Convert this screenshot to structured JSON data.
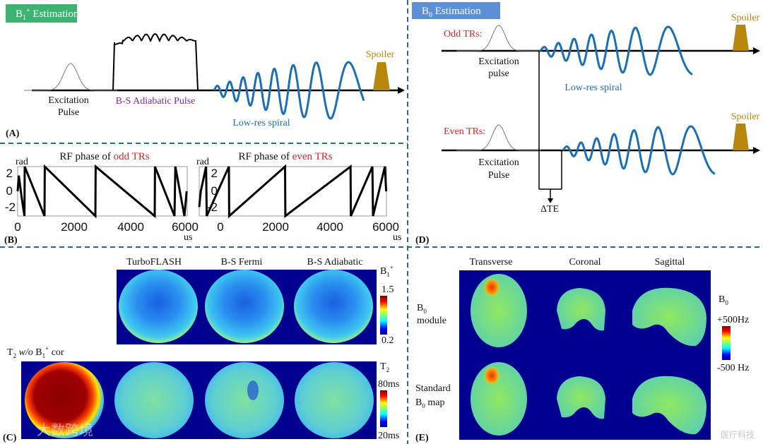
{
  "colors": {
    "accent_green": "#3cb371",
    "accent_blue": "#5b8fd6",
    "divider": "#2a6a8a",
    "spiral": "#1a6fb5",
    "spoiler": "#b8860b",
    "highlight_red": "#e0202a",
    "purple": "#7a2a9a"
  },
  "panel_a": {
    "box_label_b": "B",
    "box_label_sub": "1",
    "box_label_sup": "+",
    "box_label_rest": " Estimation",
    "excitation_1": "Excitation",
    "excitation_2": "Pulse",
    "bs_pulse": "B-S Adiabatic  Pulse",
    "spiral": "Low-res spiral",
    "spoiler": "Spoiler",
    "tag": "(A)"
  },
  "panel_b": {
    "left_title_prefix": "RF phase  of ",
    "left_title_highlight": "odd TRs",
    "right_title_prefix": "RF phase  of ",
    "right_title_highlight": "even TRs",
    "y_unit": "rad",
    "x_unit": "us",
    "y_ticks": [
      "2",
      "0",
      "-2"
    ],
    "x_ticks": [
      "0",
      "2000",
      "4000",
      "6000"
    ],
    "tag": "(B)"
  },
  "panel_d": {
    "box_label_b": "B",
    "box_label_sub": "0",
    "box_label_rest": " Estimation",
    "odd": "Odd TRs:",
    "even": "Even TRs:",
    "excitation_1": "Excitation",
    "excitation_2a": "pulse",
    "excitation_2b": "Pulse",
    "spiral": "Low-res spiral",
    "spoiler": "Spoiler",
    "delta_te": "ΔTE",
    "tag": "(D)"
  },
  "panel_c": {
    "columns": [
      "TurboFLASH",
      "B-S Fermi",
      "B-S Adiabatic"
    ],
    "b1_label_b": "B",
    "b1_label_sub": "1",
    "b1_label_sup": "+",
    "b1_max": "1.5",
    "b1_min": "0.2",
    "t2_row_label_t": "T",
    "t2_row_label_sub": "2",
    "t2_row_label_wo": " w/o",
    "t2_row_label_b": " B",
    "t2_row_label_sub2": "1",
    "t2_row_label_sup": "+",
    "t2_row_label_cor": " cor",
    "t2_label_t": "T",
    "t2_label_sub": "2",
    "t2_max": "80ms",
    "t2_min": "20ms",
    "tag": "(C)"
  },
  "panel_e": {
    "columns": [
      "Transverse",
      "Coronal",
      "Sagittal"
    ],
    "row1_a": "B",
    "row1_sub": "0",
    "row1_b": "module",
    "row2_a": "Standard",
    "row2_b": "B",
    "row2_sub": "0",
    "row2_c": " map",
    "cb_label": "B",
    "cb_sub": "0",
    "cb_max": "+500Hz",
    "cb_min": "-500 Hz",
    "tag": "(E)"
  },
  "watermarks": [
    "大数跨境",
    "医疗科技"
  ]
}
